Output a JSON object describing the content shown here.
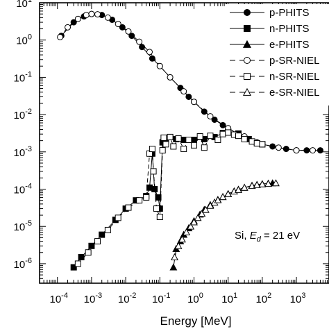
{
  "chart_data": {
    "type": "line",
    "xlabel": "Energy [MeV]",
    "x_scale": "log",
    "y_scale": "log",
    "xlim": [
      3e-05,
      9000
    ],
    "ylim": [
      3e-07,
      10
    ],
    "x_ticks": [
      {
        "value": 0.0001,
        "base": "10",
        "exp": "-4"
      },
      {
        "value": 0.001,
        "base": "10",
        "exp": "-3"
      },
      {
        "value": 0.01,
        "base": "10",
        "exp": "-2"
      },
      {
        "value": 0.1,
        "base": "10",
        "exp": "-1"
      },
      {
        "value": 1,
        "base": "10",
        "exp": "0"
      },
      {
        "value": 10,
        "base": "10",
        "exp": "1"
      },
      {
        "value": 100,
        "base": "10",
        "exp": "2"
      },
      {
        "value": 1000,
        "base": "10",
        "exp": "3"
      }
    ],
    "y_ticks": [
      {
        "value": 10,
        "base": "10",
        "exp": "1"
      },
      {
        "value": 1,
        "base": "10",
        "exp": "0"
      },
      {
        "value": 0.1,
        "base": "10",
        "exp": "-1"
      },
      {
        "value": 0.01,
        "base": "10",
        "exp": "-2"
      },
      {
        "value": 0.001,
        "base": "10",
        "exp": "-3"
      },
      {
        "value": 0.0001,
        "base": "10",
        "exp": "-4"
      },
      {
        "value": 1e-05,
        "base": "10",
        "exp": "-5"
      },
      {
        "value": 1e-06,
        "base": "10",
        "exp": "-6"
      }
    ],
    "legend_position": "top-right",
    "annotation": {
      "prefix": "Si, ",
      "symbol": "E",
      "subscript": "d",
      "suffix": " = 21 eV"
    },
    "series": [
      {
        "name": "p-PHITS",
        "marker": "circle",
        "filled": true,
        "dashed": false,
        "x": [
          0.00013,
          0.0003,
          0.0006,
          0.001,
          0.002,
          0.004,
          0.008,
          0.015,
          0.03,
          0.06,
          0.1,
          0.2,
          0.4,
          0.7,
          1,
          2,
          4,
          7,
          10,
          20,
          40,
          70,
          100,
          200,
          500,
          1000,
          2000,
          5000
        ],
        "y": [
          1.3,
          3.0,
          4.3,
          5.0,
          4.7,
          3.5,
          2.2,
          1.3,
          0.65,
          0.32,
          0.2,
          0.1,
          0.052,
          0.03,
          0.022,
          0.012,
          0.0073,
          0.0052,
          0.0043,
          0.003,
          0.0022,
          0.0018,
          0.0016,
          0.0014,
          0.0012,
          0.0011,
          0.0011,
          0.0011
        ]
      },
      {
        "name": "n-PHITS",
        "marker": "square",
        "filled": true,
        "dashed": false,
        "x": [
          0.0003,
          0.0005,
          0.001,
          0.002,
          0.005,
          0.01,
          0.02,
          0.04,
          0.05,
          0.06,
          0.07,
          0.09,
          0.1,
          0.12,
          0.15,
          0.2,
          0.3,
          0.5,
          1,
          2,
          4,
          7,
          10,
          20,
          40,
          70,
          100
        ],
        "y": [
          8e-07,
          1.5e-06,
          3e-06,
          6e-06,
          1.5e-05,
          3e-05,
          5e-05,
          6.5e-05,
          0.00011,
          0.0009,
          0.0001,
          6e-05,
          3e-05,
          0.0018,
          0.0018,
          0.0025,
          0.0022,
          0.0021,
          0.0021,
          0.0022,
          0.0025,
          0.0032,
          0.0035,
          0.0031,
          0.0022,
          0.0017,
          0.0016
        ]
      },
      {
        "name": "e-PHITS",
        "marker": "triangle",
        "filled": true,
        "dashed": false,
        "x": [
          0.25,
          0.3,
          0.4,
          0.5,
          0.7,
          1,
          1.5,
          2,
          3,
          5,
          7,
          10,
          15,
          20,
          30,
          50,
          70,
          100,
          150,
          200
        ],
        "y": [
          8e-07,
          2.5e-06,
          4e-06,
          6e-06,
          9e-06,
          1.4e-05,
          2.1e-05,
          2.8e-05,
          3.8e-05,
          5.2e-05,
          6.2e-05,
          7.5e-05,
          8.8e-05,
          9.8e-05,
          0.00011,
          0.000125,
          0.000132,
          0.000138,
          0.000142,
          0.000145
        ]
      },
      {
        "name": "p-SR-NIEL",
        "marker": "circle",
        "filled": false,
        "dashed": true,
        "x": [
          0.00012,
          0.0002,
          0.0004,
          0.0007,
          0.001,
          0.0015,
          0.003,
          0.006,
          0.012,
          0.025,
          0.05,
          0.1,
          0.2,
          0.5,
          1,
          3,
          10,
          30,
          100,
          300,
          1000,
          3000
        ],
        "y": [
          1.2,
          2.2,
          3.7,
          4.7,
          5.0,
          4.9,
          4.0,
          2.7,
          1.7,
          0.9,
          0.48,
          0.2,
          0.1,
          0.042,
          0.022,
          0.009,
          0.0043,
          0.0026,
          0.0016,
          0.0013,
          0.0011,
          0.0011
        ]
      },
      {
        "name": "n-SR-NIEL",
        "marker": "square",
        "filled": false,
        "dashed": true,
        "x": [
          0.0004,
          0.0008,
          0.0015,
          0.003,
          0.006,
          0.012,
          0.025,
          0.04,
          0.05,
          0.06,
          0.065,
          0.08,
          0.1,
          0.12,
          0.13,
          0.15,
          0.2,
          0.25,
          0.35,
          0.5,
          0.7,
          1,
          1.5,
          2,
          3,
          5,
          7,
          10,
          15,
          20,
          30,
          50,
          70,
          100
        ],
        "y": [
          1e-06,
          2e-06,
          4e-06,
          8e-06,
          1.7e-05,
          3.2e-05,
          5e-05,
          6e-05,
          0.0009,
          0.0012,
          0.0003,
          3e-05,
          1.8e-05,
          0.0011,
          0.0024,
          0.0016,
          0.0025,
          0.0014,
          0.0023,
          0.0012,
          0.0021,
          0.0015,
          0.0026,
          0.0013,
          0.0027,
          0.0021,
          0.003,
          0.0033,
          0.0029,
          0.0027,
          0.0022,
          0.0019,
          0.0017,
          0.0016
        ]
      },
      {
        "name": "e-SR-NIEL",
        "marker": "triangle",
        "filled": false,
        "dashed": true,
        "x": [
          0.27,
          0.35,
          0.45,
          0.6,
          0.8,
          1,
          1.3,
          1.7,
          2.2,
          3,
          4,
          5,
          7,
          10,
          15,
          20,
          30,
          50,
          70,
          100,
          150,
          250
        ],
        "y": [
          1.5e-06,
          3e-06,
          4.5e-06,
          7e-06,
          1e-05,
          1.3e-05,
          1.7e-05,
          2.2e-05,
          2.8e-05,
          3.6e-05,
          4.4e-05,
          5.1e-05,
          6.2e-05,
          7.4e-05,
          8.7e-05,
          9.6e-05,
          0.00011,
          0.000123,
          0.00013,
          0.000136,
          0.00014,
          0.000145
        ]
      }
    ]
  }
}
